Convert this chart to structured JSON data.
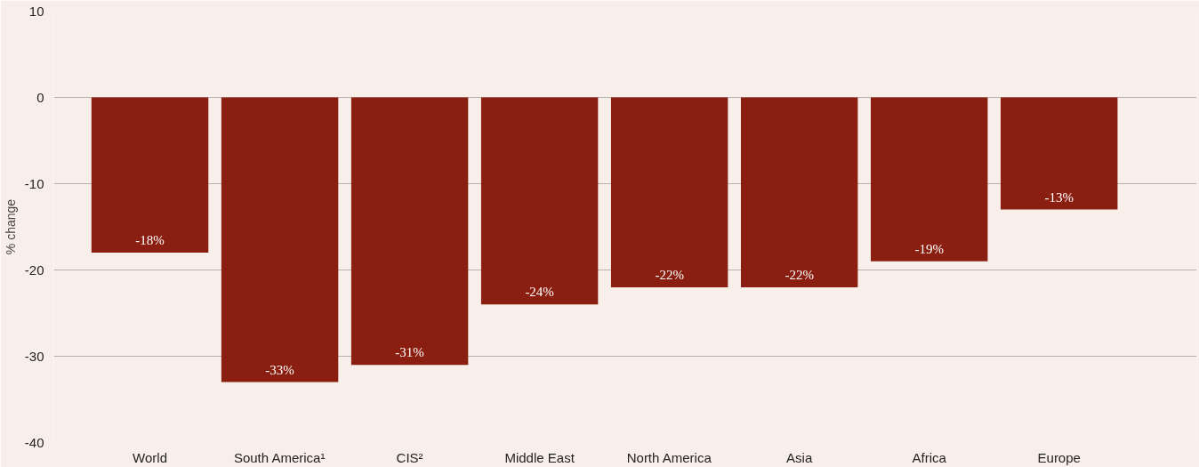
{
  "chart_data": {
    "type": "bar",
    "ylabel": "% change",
    "categories": [
      "World",
      "South America¹",
      "CIS²",
      "Middle East",
      "North America",
      "Asia",
      "Africa",
      "Europe"
    ],
    "values": [
      -18,
      -33,
      -31,
      -24,
      -22,
      -22,
      -19,
      -13
    ],
    "value_labels": [
      "-18%",
      "-33%",
      "-31%",
      "-24%",
      "-22%",
      "-22%",
      "-19%",
      "-13%"
    ],
    "color": "#8a1f11",
    "ylim": [
      -40,
      10
    ],
    "yticks": [
      -40,
      -30,
      -20,
      -10,
      0,
      10
    ],
    "grid": "y"
  }
}
